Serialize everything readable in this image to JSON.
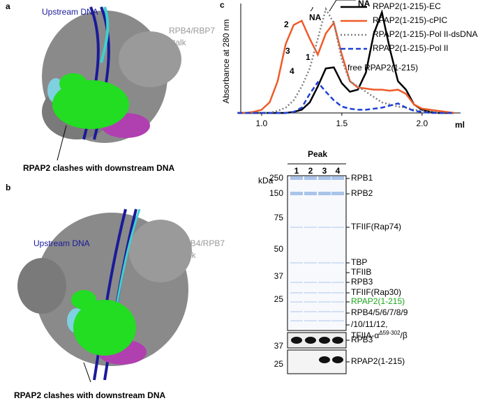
{
  "panels": {
    "a": {
      "letter": "a",
      "upstream": "Upstream DNA",
      "stalk": [
        "RPB4/RBP7",
        "stalk"
      ],
      "caption": "RPAP2 clashes with downstream DNA"
    },
    "b": {
      "letter": "b",
      "upstream": "Upstream DNA",
      "stalk": [
        "RPB4/RPB7",
        "stalk"
      ],
      "caption": "RPAP2 clashes with downstream DNA"
    },
    "c": {
      "letter": "c"
    },
    "gel": {
      "peak": "Peak",
      "lanes": [
        "1",
        "2",
        "3",
        "4"
      ],
      "unit": "kDa",
      "markers": [
        250,
        150,
        75,
        50,
        37,
        25,
        37,
        25
      ],
      "bands": [
        "RPB1",
        "RPB2",
        "TFIIF(Rap74)",
        "TBP",
        "TFIIB",
        "RPB3",
        "TFIIF(Rap30)",
        "RPAP2(1-215)",
        "RPB4/5/6/7/8/9",
        "/10/11/12,"
      ],
      "tfiia": [
        "TFIIA-α",
        "Δ59-302",
        "/β"
      ],
      "blots": [
        "RPB3",
        "RPAP2(1-215)"
      ]
    }
  },
  "chart_data": {
    "type": "line",
    "ylabel": "Absorbance at 280 nm",
    "xlabel": "ml",
    "x": [
      0.85,
      0.9,
      0.95,
      1.0,
      1.05,
      1.1,
      1.15,
      1.2,
      1.25,
      1.3,
      1.35,
      1.4,
      1.45,
      1.5,
      1.55,
      1.6,
      1.65,
      1.7,
      1.75,
      1.8,
      1.85,
      1.9,
      1.95,
      2.0,
      2.05,
      2.1,
      2.15,
      2.2
    ],
    "xlim": [
      0.87,
      2.24
    ],
    "ylim": [
      0,
      1
    ],
    "xticks": [
      {
        "value": 1,
        "label": "1.0"
      },
      1.5,
      {
        "value": 2,
        "label": "2.0"
      }
    ],
    "annotations": [
      "2",
      "NA",
      "NA",
      "3",
      "1",
      "4",
      "free RPAP2(1-215)"
    ],
    "series": [
      {
        "name": "RPAP2(1-215)-EC",
        "color": "#000000",
        "linestyle": "solid",
        "values": [
          0,
          0,
          0,
          0,
          0,
          0,
          0,
          0.01,
          0.03,
          0.1,
          0.25,
          0.42,
          0.43,
          0.28,
          0.2,
          0.22,
          0.38,
          0.75,
          0.95,
          0.6,
          0.3,
          0.22,
          0.08,
          0.03,
          0.01,
          0,
          0,
          0
        ]
      },
      {
        "name": "RPAP2(1-215)-cPIC",
        "color": "#f05a28",
        "linestyle": "solid",
        "values": [
          0,
          0,
          0.01,
          0.03,
          0.1,
          0.3,
          0.65,
          0.83,
          0.87,
          0.7,
          0.55,
          0.75,
          0.85,
          0.55,
          0.3,
          0.24,
          0.23,
          0.22,
          0.22,
          0.21,
          0.22,
          0.18,
          0.08,
          0.04,
          0.03,
          0.02,
          0.01,
          0
        ]
      },
      {
        "name": "RPAP2(1-215)-Pol II-dsDNA",
        "color": "#808080",
        "linestyle": "dotted",
        "values": [
          0,
          0,
          0,
          0,
          0,
          0.02,
          0.05,
          0.12,
          0.25,
          0.42,
          0.7,
          0.98,
          0.85,
          0.5,
          0.3,
          0.25,
          0.2,
          0.15,
          0.1,
          0.08,
          0.06,
          0.05,
          0.03,
          0.02,
          0.01,
          0,
          0,
          0
        ]
      },
      {
        "name": "RPAP2(1-215)-Pol II",
        "color": "#1f3fd6",
        "linestyle": "dashed",
        "values": [
          0,
          0,
          0,
          0,
          0,
          0,
          0,
          0.01,
          0.05,
          0.18,
          0.29,
          0.2,
          0.12,
          0.06,
          0.04,
          0.03,
          0.03,
          0.04,
          0.05,
          0.07,
          0.09,
          0.05,
          0.02,
          0.01,
          0,
          0,
          0,
          0
        ]
      }
    ]
  }
}
